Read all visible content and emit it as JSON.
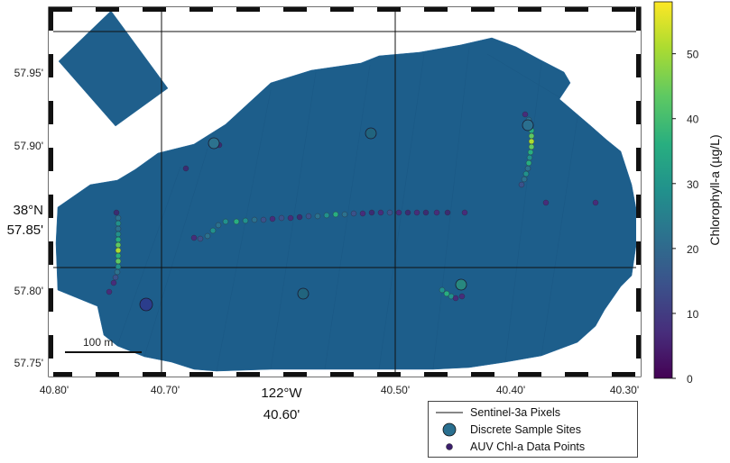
{
  "map": {
    "lon_ticks": [
      "40.80'",
      "40.70'",
      "40.50'",
      "40.40'",
      "40.30'"
    ],
    "lon_center_degree": "122°W",
    "lon_center_minute": "40.60'",
    "lat_ticks": [
      "57.95'",
      "57.90'",
      "57.80'",
      "57.75'"
    ],
    "lat_center_degree": "38°N",
    "lat_center_minute": "57.85'",
    "scale_bar_label": "100 m"
  },
  "colorbar": {
    "title": "Chlorophyll-a (µg/L)",
    "ticks": [
      "0",
      "10",
      "20",
      "30",
      "40",
      "50"
    ],
    "tick_values": [
      0,
      10,
      20,
      30,
      40,
      50
    ],
    "range": [
      0,
      58
    ],
    "colormap": "viridis"
  },
  "legend": {
    "pixels_label": "Sentinel-3a Pixels",
    "sites_label": "Discrete Sample Sites",
    "auv_label": "AUV Chl-a Data Points"
  },
  "colors": {
    "water": "#1c5c8a",
    "frame_dark": "#111111",
    "marker_dark": "#3b1e6b",
    "site_fill": "#2a6f8f"
  }
}
